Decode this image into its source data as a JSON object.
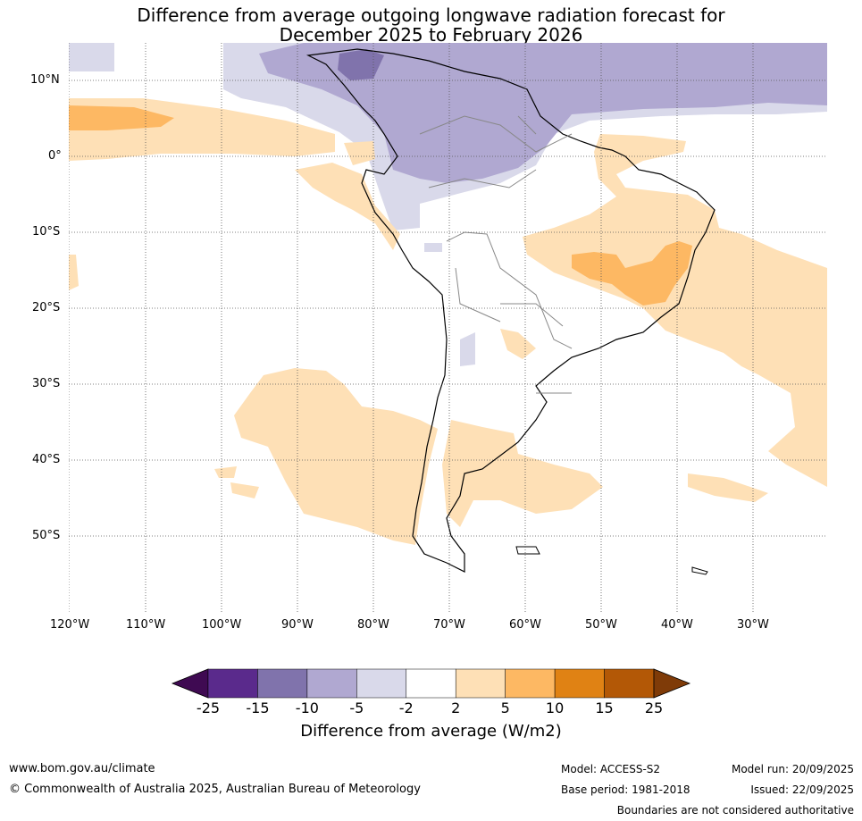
{
  "title": {
    "line1": "Difference from average outgoing longwave radiation forecast for",
    "line2": "December 2025 to February 2026"
  },
  "map": {
    "lat_labels": [
      "10°N",
      "0°",
      "10°S",
      "20°S",
      "30°S",
      "40°S",
      "50°S"
    ],
    "lon_labels": [
      "120°W",
      "110°W",
      "100°W",
      "90°W",
      "80°W",
      "70°W",
      "60°W",
      "50°W",
      "40°W",
      "30°W"
    ]
  },
  "colorbar": {
    "ticks": [
      "-25",
      "-15",
      "-10",
      "-5",
      "-2",
      "2",
      "5",
      "10",
      "15",
      "25"
    ],
    "colors": [
      "#3f0a52",
      "#5a2a8c",
      "#8073ac",
      "#b0a8d1",
      "#d9d9ea",
      "#ffffff",
      "#fee0b6",
      "#fdb863",
      "#e08214",
      "#b35806",
      "#7f3b08"
    ],
    "label": "Difference from average (W/m2)"
  },
  "footer": {
    "website": "www.bom.gov.au/climate",
    "copyright": "© Commonwealth of Australia 2025, Australian Bureau of Meteorology",
    "model": "Model: ACCESS-S2",
    "base_period": "Base period: 1981-2018",
    "model_run": "Model run: 20/09/2025",
    "issued": "Issued: 22/09/2025",
    "disclaimer": "Boundaries are not considered authoritative"
  }
}
